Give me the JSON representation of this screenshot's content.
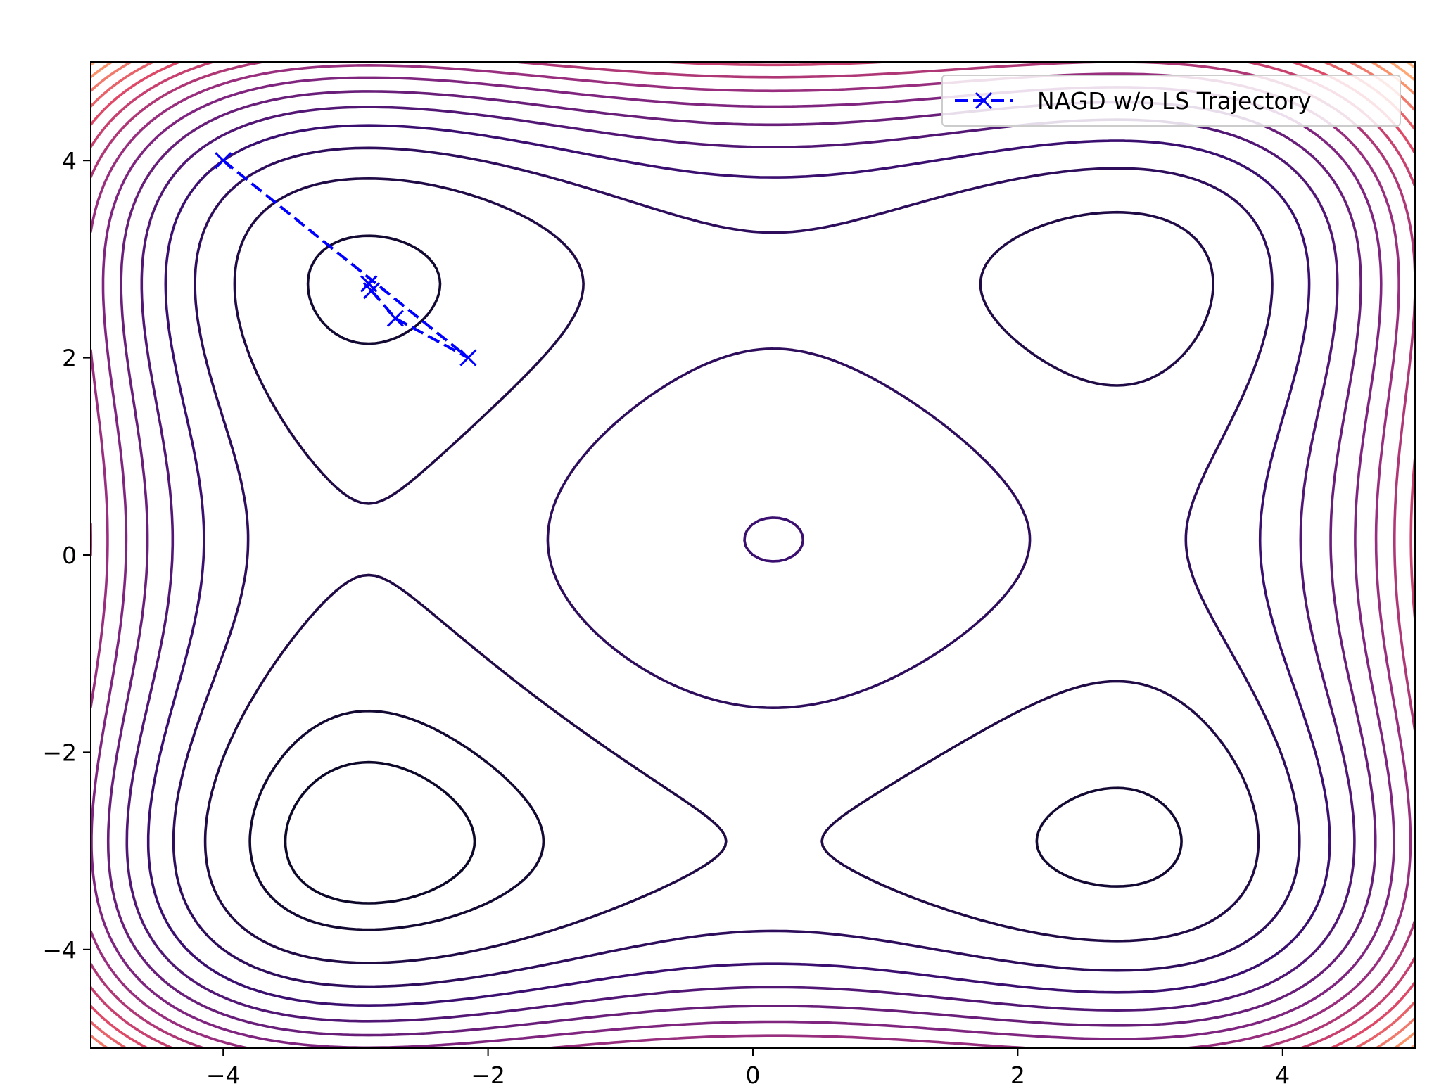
{
  "chart_data": {
    "type": "contour",
    "title": "",
    "xlabel": "",
    "ylabel": "",
    "xlim": [
      -5,
      5
    ],
    "ylim": [
      -5,
      5
    ],
    "xticks": [
      -4,
      -2,
      0,
      2,
      4
    ],
    "yticks": [
      -4,
      -2,
      0,
      2,
      4
    ],
    "xtick_labels": [
      "−4",
      "−2",
      "0",
      "2",
      "4"
    ],
    "ytick_labels": [
      "−4",
      "−2",
      "0",
      "2",
      "4"
    ],
    "grid": false,
    "legend": {
      "placement": "upper right"
    },
    "function": "Himmelblau-like: 0.5*(x^4 - 16x^2 + 5x) + 0.5*(y^4 - 16y^2 + 5y)",
    "contour": {
      "levels": [
        -70,
        -60,
        -40,
        -20,
        0,
        20,
        40,
        60,
        80,
        100,
        120,
        140,
        160,
        180,
        200,
        220,
        240,
        260,
        280
      ],
      "colormap": "magma",
      "color_stops": [
        "#0d0829",
        "#3b0f70",
        "#8c2981",
        "#de4968",
        "#fe9f6d",
        "#fcd7a0"
      ]
    },
    "series": [
      {
        "name": "NAGD w/o LS Trajectory",
        "color": "#0000ff",
        "linestyle": "dashed",
        "marker": "x",
        "x": [
          -4.0,
          -2.15,
          -2.7,
          -2.88,
          -2.9,
          -2.9,
          -2.9
        ],
        "y": [
          4.0,
          2.0,
          2.4,
          2.68,
          2.75,
          2.75,
          2.75
        ]
      }
    ]
  }
}
